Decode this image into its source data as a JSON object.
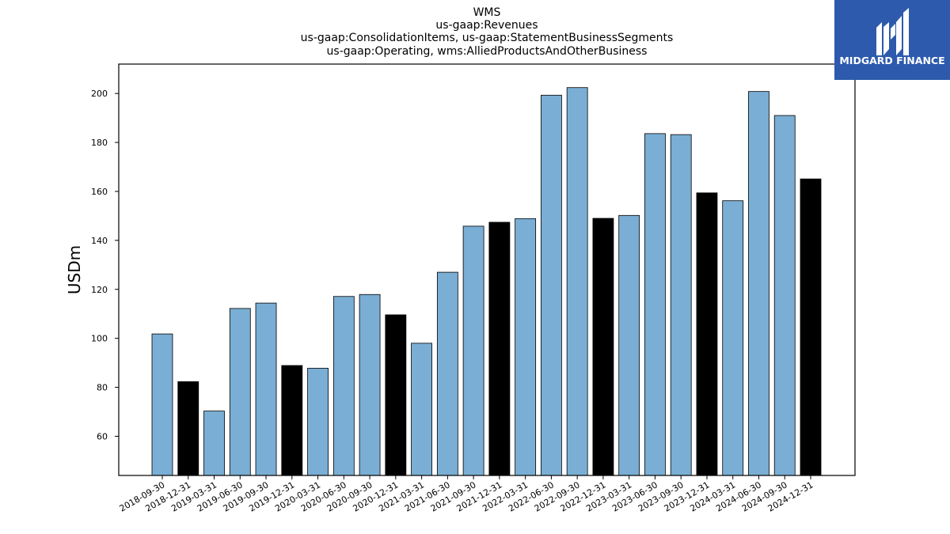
{
  "logo": {
    "text": "MIDGARD FINANCE",
    "background": "#2d5aad"
  },
  "chart_data": {
    "type": "bar",
    "title_lines": [
      "WMS",
      "us-gaap:Revenues",
      "us-gaap:ConsolidationItems, us-gaap:StatementBusinessSegments",
      "us-gaap:Operating, wms:AlliedProductsAndOtherBusiness"
    ],
    "xlabel": "",
    "ylabel": "USDm",
    "ylim": [
      44,
      212
    ],
    "yticks": [
      60,
      80,
      100,
      120,
      140,
      160,
      180,
      200
    ],
    "grid": false,
    "categories": [
      "2018-09-30",
      "2018-12-31",
      "2019-03-31",
      "2019-06-30",
      "2019-09-30",
      "2019-12-31",
      "2020-03-31",
      "2020-06-30",
      "2020-09-30",
      "2020-12-31",
      "2021-03-31",
      "2021-06-30",
      "2021-09-30",
      "2021-12-31",
      "2022-03-31",
      "2022-06-30",
      "2022-09-30",
      "2022-12-31",
      "2023-03-31",
      "2023-06-30",
      "2023-09-30",
      "2023-12-31",
      "2024-03-31",
      "2024-06-30",
      "2024-09-30",
      "2024-12-31"
    ],
    "values": [
      101.8,
      82.3,
      70.3,
      112.2,
      114.4,
      88.9,
      87.8,
      117.1,
      117.9,
      109.6,
      98.0,
      127.0,
      145.8,
      147.4,
      148.9,
      199.3,
      202.4,
      149.0,
      150.2,
      183.6,
      183.2,
      159.4,
      156.2,
      200.8,
      191.0,
      165.1
    ],
    "colors": {
      "quarter": "#7aaed4",
      "year_end": "#000000",
      "edge": "#000000"
    }
  }
}
